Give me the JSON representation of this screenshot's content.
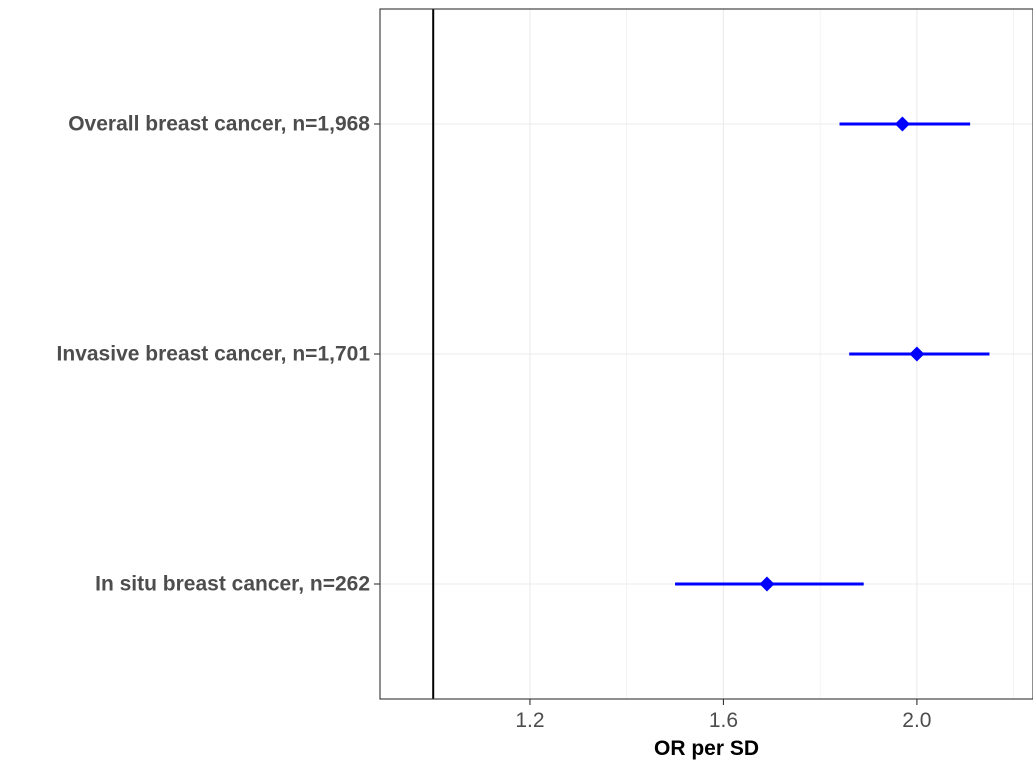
{
  "chart_data": {
    "type": "forest",
    "xlabel": "OR per SD",
    "xlim": [
      0.89,
      2.24
    ],
    "xticks": [
      1.2,
      1.6,
      2.0
    ],
    "xtick_labels": [
      "1.2",
      "1.6",
      "2.0"
    ],
    "reference_line": 1.0,
    "grid": true,
    "marker_color": "#0000ff",
    "reference_line_color": "#000000",
    "rows": [
      {
        "label": "Overall breast cancer, n=1,968",
        "estimate": 1.97,
        "lower": 1.84,
        "upper": 2.11
      },
      {
        "label": "Invasive breast cancer, n=1,701",
        "estimate": 2.0,
        "lower": 1.86,
        "upper": 2.15
      },
      {
        "label": "In situ breast cancer, n=262",
        "estimate": 1.69,
        "lower": 1.5,
        "upper": 1.89
      }
    ]
  }
}
